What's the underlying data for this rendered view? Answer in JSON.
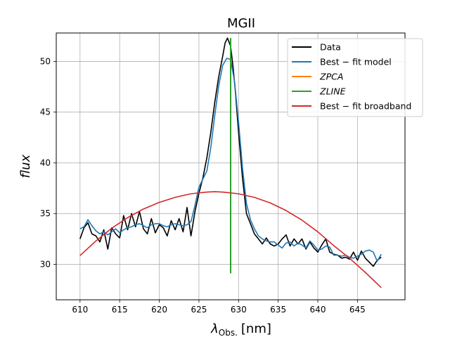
{
  "chart_data": {
    "type": "line",
    "title": "MGII",
    "xlabel_symbol": "λ",
    "xlabel_subscript": "Obs.",
    "xlabel_unit": "[nm]",
    "ylabel": "flux",
    "xlim": [
      607,
      651
    ],
    "ylim": [
      26.5,
      52.8
    ],
    "xticks": [
      610,
      615,
      620,
      625,
      630,
      635,
      640,
      645
    ],
    "yticks": [
      30,
      35,
      40,
      45,
      50
    ],
    "grid": true,
    "legend_position": "top-right",
    "legend": [
      {
        "label": "Data",
        "color": "#000000",
        "italic": false
      },
      {
        "label": "Best − fit model",
        "color": "#1f77b4",
        "italic": false
      },
      {
        "label": "ZPCA",
        "color": "#ff7f0e",
        "italic": true
      },
      {
        "label": "ZLINE",
        "color": "#2ca02c",
        "italic": true
      },
      {
        "label": "Best − fit broadband",
        "color": "#d62728",
        "italic": false
      }
    ],
    "vlines": [
      {
        "name": "ZPCA",
        "x": 629.0,
        "y_range": [
          29.1,
          52.3
        ],
        "color": "#ff7f0e"
      },
      {
        "name": "ZLINE",
        "x": 629.0,
        "y_range": [
          29.1,
          52.3
        ],
        "color": "#2ca02c"
      }
    ],
    "series": [
      {
        "name": "Data",
        "color": "#000000",
        "x": [
          610.0,
          610.5,
          611.0,
          611.5,
          612.0,
          612.5,
          613.0,
          613.5,
          614.0,
          614.5,
          615.0,
          615.5,
          616.0,
          616.5,
          617.0,
          617.5,
          618.0,
          618.5,
          619.0,
          619.5,
          620.0,
          620.5,
          621.0,
          621.5,
          622.0,
          622.5,
          623.0,
          623.5,
          624.0,
          624.5,
          625.0,
          625.5,
          626.0,
          626.5,
          627.0,
          627.5,
          628.0,
          628.3,
          628.6,
          629.0,
          629.3,
          629.6,
          630.0,
          630.5,
          631.0,
          631.5,
          632.0,
          632.5,
          633.0,
          633.5,
          634.0,
          634.5,
          635.0,
          635.5,
          636.0,
          636.5,
          637.0,
          637.5,
          638.0,
          638.5,
          639.0,
          639.5,
          640.0,
          640.5,
          641.0,
          641.5,
          642.0,
          642.5,
          643.0,
          643.5,
          644.0,
          644.5,
          645.0,
          645.5,
          646.0,
          646.5,
          647.0,
          647.5,
          648.0
        ],
        "y": [
          32.5,
          33.6,
          34.1,
          33.0,
          32.8,
          32.2,
          33.4,
          31.5,
          33.6,
          33.0,
          32.6,
          34.8,
          33.4,
          35.0,
          33.7,
          35.2,
          33.5,
          33.0,
          34.5,
          33.1,
          33.9,
          33.6,
          32.8,
          34.3,
          33.4,
          34.5,
          33.2,
          35.6,
          32.8,
          35.2,
          37.0,
          38.5,
          40.5,
          43.0,
          46.0,
          48.5,
          50.5,
          51.8,
          52.3,
          51.5,
          49.5,
          47.0,
          43.0,
          38.5,
          35.0,
          34.0,
          33.0,
          32.5,
          32.0,
          32.6,
          32.0,
          31.8,
          32.0,
          32.5,
          32.9,
          31.8,
          32.5,
          32.0,
          32.5,
          31.5,
          32.2,
          31.6,
          31.2,
          31.9,
          32.5,
          31.2,
          31.0,
          30.9,
          30.6,
          30.7,
          30.5,
          31.2,
          30.4,
          31.3,
          30.6,
          30.2,
          29.8,
          30.4,
          30.7
        ]
      },
      {
        "name": "Best − fit model",
        "color": "#1f77b4",
        "x": [
          610.0,
          610.5,
          611.0,
          611.5,
          612.0,
          612.5,
          613.0,
          613.5,
          614.0,
          614.5,
          615.0,
          615.5,
          616.0,
          616.5,
          617.0,
          617.5,
          618.0,
          618.5,
          619.0,
          619.5,
          620.0,
          620.5,
          621.0,
          621.5,
          622.0,
          622.5,
          623.0,
          623.5,
          624.0,
          624.5,
          625.0,
          625.5,
          626.0,
          626.5,
          627.0,
          627.5,
          628.0,
          628.5,
          629.0,
          629.5,
          630.0,
          630.5,
          631.0,
          631.5,
          632.0,
          632.5,
          633.0,
          633.5,
          634.0,
          634.5,
          635.0,
          635.5,
          636.0,
          636.5,
          637.0,
          637.5,
          638.0,
          638.5,
          639.0,
          639.5,
          640.0,
          640.5,
          641.0,
          641.5,
          642.0,
          642.5,
          643.0,
          643.5,
          644.0,
          644.5,
          645.0,
          645.5,
          646.0,
          646.5,
          647.0,
          647.5,
          648.0
        ],
        "y": [
          33.5,
          33.7,
          34.4,
          33.8,
          33.3,
          33.0,
          33.2,
          32.9,
          33.2,
          33.5,
          33.1,
          33.4,
          33.6,
          33.7,
          33.9,
          34.0,
          33.8,
          33.6,
          33.9,
          34.0,
          34.0,
          33.8,
          33.7,
          33.9,
          34.0,
          33.9,
          33.8,
          33.9,
          34.2,
          35.8,
          37.6,
          38.4,
          39.2,
          41.5,
          44.7,
          47.6,
          49.6,
          50.3,
          50.2,
          48.0,
          44.0,
          39.5,
          36.0,
          34.4,
          33.5,
          32.8,
          32.5,
          32.3,
          32.2,
          32.2,
          31.9,
          31.6,
          32.1,
          32.2,
          31.8,
          32.1,
          31.9,
          31.6,
          32.3,
          31.9,
          31.4,
          31.5,
          31.8,
          31.7,
          30.9,
          30.9,
          30.8,
          30.9,
          30.7,
          30.6,
          30.8,
          31.0,
          31.3,
          31.4,
          31.2,
          30.3,
          31.0
        ]
      },
      {
        "name": "Best − fit broadband",
        "color": "#d62728",
        "x": [
          610.0,
          612.0,
          614.0,
          616.0,
          618.0,
          620.0,
          622.0,
          624.0,
          626.0,
          627.0,
          628.0,
          630.0,
          632.0,
          634.0,
          636.0,
          638.0,
          640.0,
          642.0,
          644.0,
          646.0,
          648.0
        ],
        "y": [
          30.85,
          32.3,
          33.55,
          34.6,
          35.45,
          36.1,
          36.6,
          36.95,
          37.12,
          37.15,
          37.12,
          36.95,
          36.6,
          36.05,
          35.3,
          34.35,
          33.2,
          31.85,
          30.6,
          29.2,
          27.7
        ]
      }
    ]
  }
}
